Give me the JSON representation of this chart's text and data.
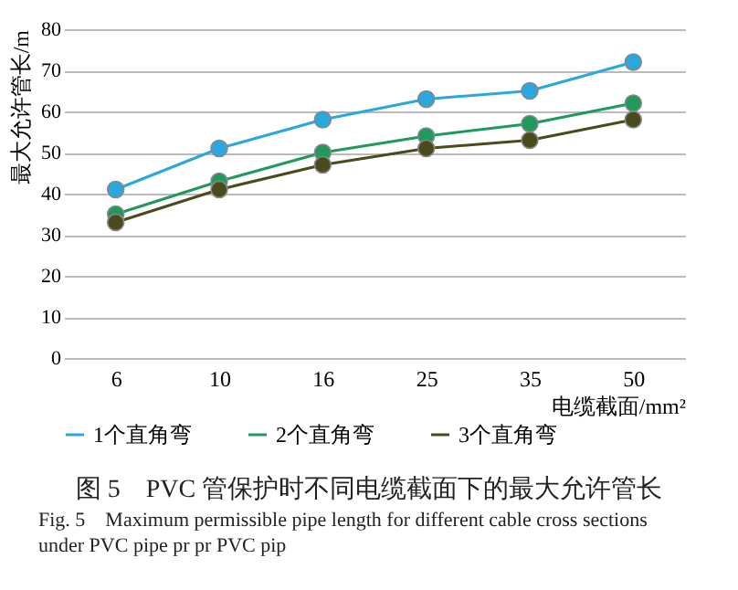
{
  "chart_data": {
    "type": "line",
    "title": "图 5　PVC 管保护时不同电缆截面下的最大允许管长",
    "subtitle": "Fig. 5　Maximum permissible pipe length for different cable cross sections under PVC pipe pr pr PVC pip",
    "xlabel": "电缆截面/mm²",
    "ylabel": "最大允许管长/m",
    "categories": [
      "6",
      "10",
      "16",
      "25",
      "35",
      "50"
    ],
    "series": [
      {
        "name": "1个直角弯",
        "color": "#2aa7dc",
        "values": [
          41,
          51,
          58,
          63,
          65,
          72
        ]
      },
      {
        "name": "2个直角弯",
        "color": "#1f9a5c",
        "values": [
          35,
          43,
          50,
          54,
          57,
          62
        ]
      },
      {
        "name": "3个直角弯",
        "color": "#4b4a1c",
        "values": [
          33,
          41,
          47,
          51,
          53,
          58
        ]
      }
    ],
    "ylim": [
      0,
      80
    ],
    "yticks": [
      0,
      10,
      20,
      30,
      40,
      50,
      60,
      70,
      80
    ],
    "grid": "y",
    "legend": "bottom",
    "marker": "circle",
    "line_style": "solid"
  }
}
